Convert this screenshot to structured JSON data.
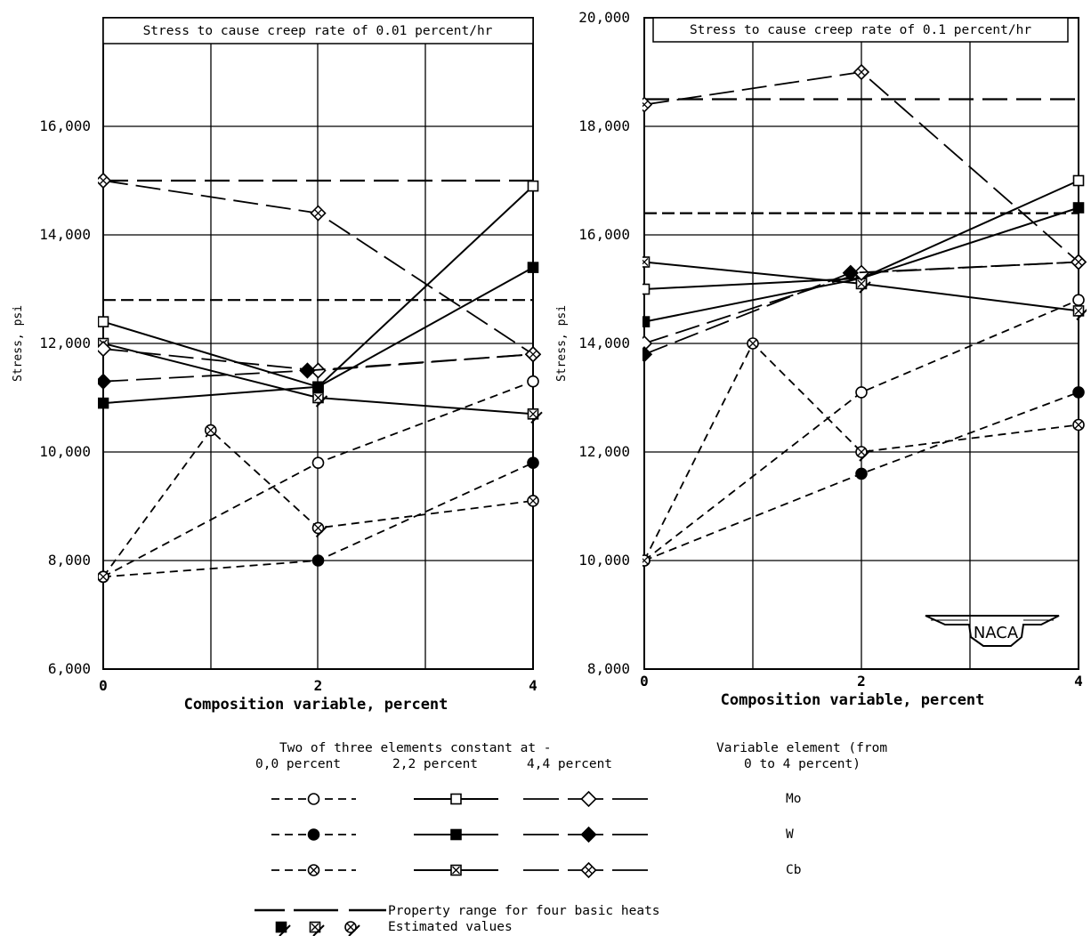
{
  "chart_data": [
    {
      "type": "line",
      "title": "Stress to cause creep rate of 0.01 percent/hr",
      "xlabel": "Composition variable, percent",
      "ylabel": "Stress, psi",
      "xlim": [
        0,
        4
      ],
      "ylim": [
        6000,
        18000
      ],
      "xticks": [
        "0",
        "2",
        "4"
      ],
      "yticks": [
        "6,000",
        "8,000",
        "10,000",
        "12,000",
        "14,000",
        "16,000"
      ],
      "grid": true,
      "ranges": [
        15000,
        12800
      ],
      "series": [
        {
          "name": "Mo",
          "group": "0,0 percent",
          "marker": "circle",
          "fill": "open",
          "dash": "short",
          "x": [
            0,
            2,
            4
          ],
          "y": [
            7700,
            9800,
            11300
          ]
        },
        {
          "name": "W",
          "group": "0,0 percent",
          "marker": "circle",
          "fill": "solid",
          "dash": "short",
          "x": [
            0,
            2,
            4
          ],
          "y": [
            7700,
            8000,
            9800
          ]
        },
        {
          "name": "Cb",
          "group": "0,0 percent",
          "marker": "circlex",
          "fill": "open",
          "dash": "short",
          "x": [
            0,
            1,
            2,
            4
          ],
          "y": [
            7700,
            10400,
            8600,
            9100
          ],
          "estimated": [
            false,
            false,
            true,
            false
          ]
        },
        {
          "name": "Mo",
          "group": "2,2 percent",
          "marker": "square",
          "fill": "open",
          "dash": "solid",
          "x": [
            0,
            2,
            4
          ],
          "y": [
            12400,
            11200,
            14900
          ]
        },
        {
          "name": "W",
          "group": "2,2 percent",
          "marker": "square",
          "fill": "solid",
          "dash": "solid",
          "x": [
            0,
            2,
            4
          ],
          "y": [
            10900,
            11200,
            13400
          ]
        },
        {
          "name": "Cb",
          "group": "2,2 percent",
          "marker": "squarex",
          "fill": "open",
          "dash": "solid",
          "x": [
            0,
            2,
            4
          ],
          "y": [
            12000,
            11000,
            10700
          ],
          "estimated": [
            false,
            true,
            true
          ]
        },
        {
          "name": "Mo",
          "group": "4,4 percent",
          "marker": "diamond",
          "fill": "open",
          "dash": "long",
          "x": [
            0,
            2,
            4
          ],
          "y": [
            11900,
            11500,
            11800
          ]
        },
        {
          "name": "W",
          "group": "4,4 percent",
          "marker": "diamond",
          "fill": "solid",
          "dash": "long",
          "x": [
            0,
            1.9,
            4
          ],
          "y": [
            11300,
            11500,
            11800
          ]
        },
        {
          "name": "Cb",
          "group": "4,4 percent",
          "marker": "diamondx",
          "fill": "open",
          "dash": "long",
          "x": [
            0,
            2,
            4
          ],
          "y": [
            15000,
            14400,
            11800
          ]
        }
      ]
    },
    {
      "type": "line",
      "title": "Stress to cause creep rate of 0.1 percent/hr",
      "xlabel": "Composition variable, percent",
      "ylabel": "Stress, psi",
      "xlim": [
        0,
        4
      ],
      "ylim": [
        8000,
        20000
      ],
      "xticks": [
        "0",
        "2",
        "4"
      ],
      "yticks": [
        "8,000",
        "10,000",
        "12,000",
        "14,000",
        "16,000",
        "18,000",
        "20,000"
      ],
      "grid": true,
      "ranges": [
        18500,
        16400
      ],
      "series": [
        {
          "name": "Mo",
          "group": "0,0 percent",
          "marker": "circle",
          "fill": "open",
          "dash": "short",
          "x": [
            0,
            2,
            4
          ],
          "y": [
            10000,
            13100,
            14800
          ]
        },
        {
          "name": "W",
          "group": "0,0 percent",
          "marker": "circle",
          "fill": "solid",
          "dash": "short",
          "x": [
            0,
            2,
            4
          ],
          "y": [
            10000,
            11600,
            13100
          ]
        },
        {
          "name": "Cb",
          "group": "0,0 percent",
          "marker": "circlex",
          "fill": "open",
          "dash": "short",
          "x": [
            0,
            1,
            2,
            4
          ],
          "y": [
            10000,
            14000,
            12000,
            12500
          ],
          "estimated": [
            false,
            false,
            true,
            false
          ]
        },
        {
          "name": "Mo",
          "group": "2,2 percent",
          "marker": "square",
          "fill": "open",
          "dash": "solid",
          "x": [
            0,
            2,
            4
          ],
          "y": [
            15000,
            15200,
            17000
          ]
        },
        {
          "name": "W",
          "group": "2,2 percent",
          "marker": "square",
          "fill": "solid",
          "dash": "solid",
          "x": [
            0,
            2,
            4
          ],
          "y": [
            14400,
            15200,
            16500
          ]
        },
        {
          "name": "Cb",
          "group": "2,2 percent",
          "marker": "squarex",
          "fill": "open",
          "dash": "solid",
          "x": [
            0,
            2,
            4
          ],
          "y": [
            15500,
            15100,
            14600
          ],
          "estimated": [
            false,
            true,
            true
          ]
        },
        {
          "name": "Mo",
          "group": "4,4 percent",
          "marker": "diamond",
          "fill": "open",
          "dash": "long",
          "x": [
            0,
            2,
            4
          ],
          "y": [
            14000,
            15300,
            15500
          ]
        },
        {
          "name": "W",
          "group": "4,4 percent",
          "marker": "diamond",
          "fill": "solid",
          "dash": "long",
          "x": [
            0,
            1.9,
            4
          ],
          "y": [
            13800,
            15300,
            15500
          ]
        },
        {
          "name": "Cb",
          "group": "4,4 percent",
          "marker": "diamondx",
          "fill": "open",
          "dash": "long",
          "x": [
            0,
            2,
            4
          ],
          "y": [
            18400,
            19000,
            15500
          ]
        }
      ]
    }
  ],
  "legend": {
    "header": "Two of three elements constant at -",
    "groups": [
      "0,0 percent",
      "2,2 percent",
      "4,4 percent"
    ],
    "variable_header_1": "Variable element (from",
    "variable_header_2": "0 to 4 percent)",
    "elements": [
      "Mo",
      "W",
      "Cb"
    ],
    "range_label": "Property range for four basic heats",
    "estimated_label": "Estimated values"
  },
  "logo_text": "NACA"
}
